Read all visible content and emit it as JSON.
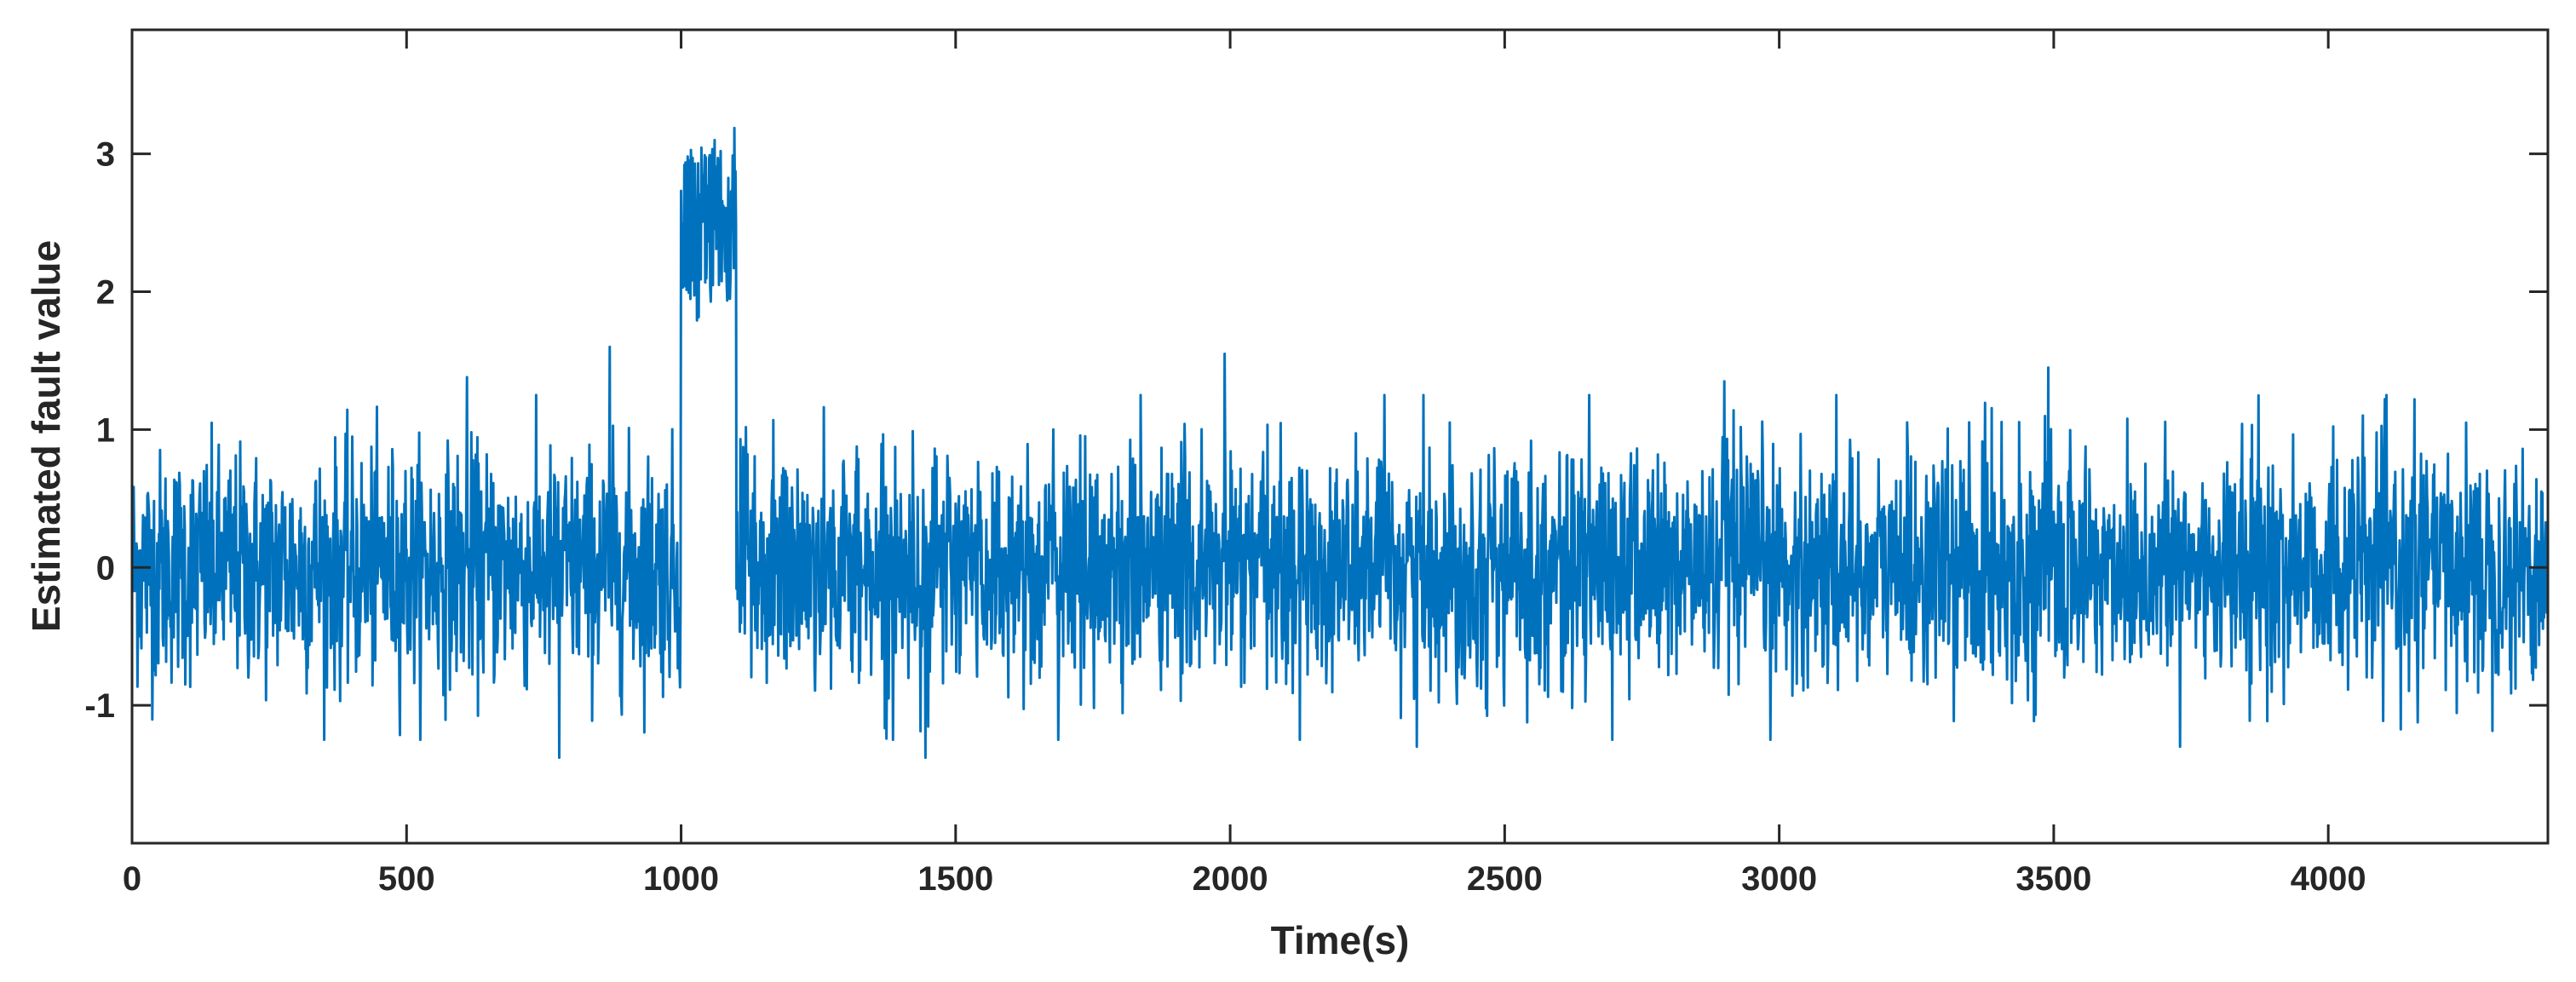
{
  "chart_data": {
    "type": "line",
    "title": "",
    "xlabel": "Time(s)",
    "ylabel": "Estimated fault value",
    "xlim": [
      0,
      4400
    ],
    "ylim": [
      -2,
      3.9
    ],
    "xticks": [
      0,
      500,
      1000,
      1500,
      2000,
      2500,
      3000,
      3500,
      4000
    ],
    "yticks": [
      -1,
      0,
      1,
      2,
      3
    ],
    "xtick_labels": [
      "0",
      "500",
      "1000",
      "1500",
      "2000",
      "2500",
      "3000",
      "3500",
      "4000"
    ],
    "ytick_labels": [
      "-1",
      "0",
      "1",
      "2",
      "3"
    ],
    "grid": false,
    "legend": "none",
    "series": [
      {
        "color": "#0072BD",
        "x_start": 0,
        "x_end": 4400,
        "x_step": 1,
        "typical_range_normal": [
          -0.9,
          0.95
        ],
        "peak_range_normal": [
          -1.4,
          1.6
        ],
        "fault_interval": [
          1000,
          1100
        ],
        "typical_range_fault": [
          1.9,
          3.05
        ],
        "peak_range_fault": [
          1.7,
          3.25
        ],
        "notable_peaks": [
          {
            "x": 610,
            "y": 1.38
          },
          {
            "x": 778,
            "y": -1.38
          },
          {
            "x": 870,
            "y": 1.6
          },
          {
            "x": 1445,
            "y": -1.38
          },
          {
            "x": 1990,
            "y": 1.55
          },
          {
            "x": 2340,
            "y": -1.3
          },
          {
            "x": 2900,
            "y": 1.35
          },
          {
            "x": 3490,
            "y": 1.45
          },
          {
            "x": 3730,
            "y": -1.3
          }
        ]
      }
    ]
  }
}
